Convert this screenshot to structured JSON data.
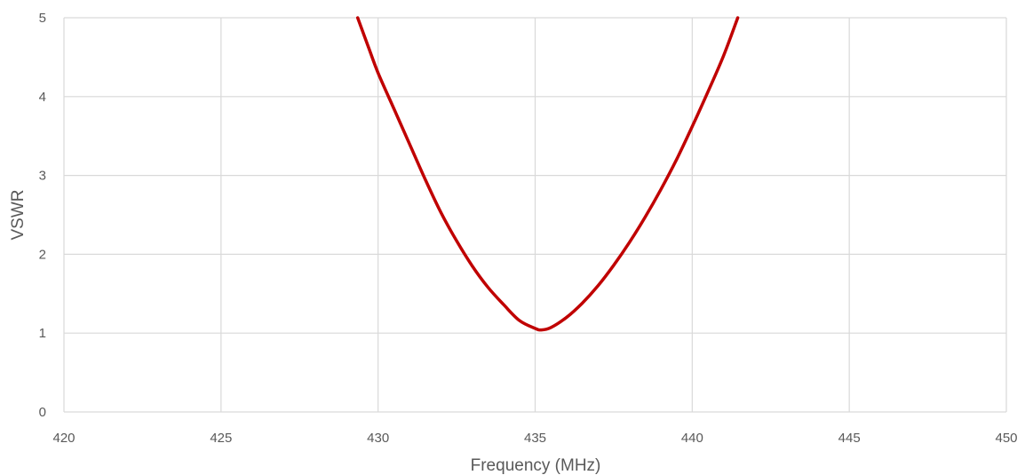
{
  "chart_data": {
    "type": "line",
    "title": "",
    "xlabel": "Frequency (MHz)",
    "ylabel": "VSWR",
    "xlim": [
      420,
      450
    ],
    "ylim": [
      0,
      5
    ],
    "x_ticks": [
      420,
      425,
      430,
      435,
      440,
      445,
      450
    ],
    "y_ticks": [
      0,
      1,
      2,
      3,
      4,
      5
    ],
    "grid": true,
    "legend": "none",
    "colors": {
      "series": "#c00000",
      "grid": "#d9d9d9",
      "text": "#595959"
    },
    "series": [
      {
        "x": [
          429.35,
          429.7,
          430.0,
          430.5,
          431.0,
          431.5,
          432.0,
          432.5,
          433.0,
          433.5,
          434.0,
          434.5,
          435.0,
          435.2,
          435.5,
          436.0,
          436.5,
          437.0,
          437.5,
          438.0,
          438.5,
          439.0,
          439.5,
          440.0,
          440.5,
          441.0,
          441.45
        ],
        "y": [
          5.0,
          4.62,
          4.3,
          3.85,
          3.4,
          2.95,
          2.53,
          2.17,
          1.85,
          1.58,
          1.36,
          1.16,
          1.06,
          1.04,
          1.07,
          1.2,
          1.38,
          1.6,
          1.86,
          2.15,
          2.47,
          2.82,
          3.2,
          3.62,
          4.06,
          4.52,
          5.0
        ]
      }
    ]
  }
}
